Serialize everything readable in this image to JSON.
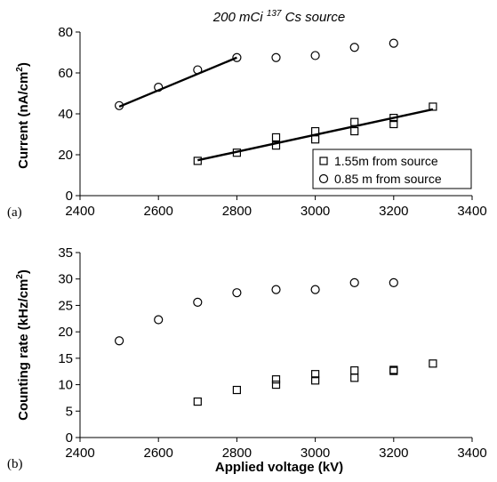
{
  "chart_data": [
    {
      "type": "scatter",
      "panel_label": "(a)",
      "title": {
        "pre": "200 mCi ",
        "sup": "137",
        "post": " Cs source"
      },
      "ylabel": {
        "pre": "Current (nA/cm",
        "sup": "2",
        "post": ")"
      },
      "xlim": [
        2400,
        3400
      ],
      "ylim": [
        0,
        80
      ],
      "xticks": [
        "2400",
        "2600",
        "2800",
        "3000",
        "3200",
        "3400"
      ],
      "yticks": [
        "0",
        "20",
        "40",
        "60",
        "80"
      ],
      "legend_position": "bottom-right",
      "series": [
        {
          "name": "1.55m from source",
          "marker": "square",
          "points": [
            [
              2700,
              17
            ],
            [
              2800,
              21
            ],
            [
              2900,
              24.5
            ],
            [
              2900,
              28.5
            ],
            [
              3000,
              27.5
            ],
            [
              3000,
              31.5
            ],
            [
              3100,
              31.5
            ],
            [
              3100,
              36
            ],
            [
              3200,
              35
            ],
            [
              3200,
              38
            ],
            [
              3300,
              43.5
            ]
          ],
          "fit": [
            [
              2700,
              17.3
            ],
            [
              3300,
              42.2
            ]
          ]
        },
        {
          "name": "0.85 m from source",
          "marker": "circle",
          "points": [
            [
              2500,
              44
            ],
            [
              2600,
              53
            ],
            [
              2700,
              61.5
            ],
            [
              2800,
              67.5
            ],
            [
              2900,
              67.5
            ],
            [
              3000,
              68.5
            ],
            [
              3100,
              72.5
            ],
            [
              3200,
              74.5
            ]
          ],
          "fit": [
            [
              2500,
              43.5
            ],
            [
              2800,
              67.5
            ]
          ]
        }
      ]
    },
    {
      "type": "scatter",
      "panel_label": "(b)",
      "ylabel": {
        "pre": "Counting rate (kHz/cm",
        "sup": "2",
        "post": ")"
      },
      "xlabel": "Applied voltage (kV)",
      "xlim": [
        2400,
        3400
      ],
      "ylim": [
        0,
        35
      ],
      "xticks": [
        "2400",
        "2600",
        "2800",
        "3000",
        "3200",
        "3400"
      ],
      "yticks": [
        "0",
        "5",
        "10",
        "15",
        "20",
        "25",
        "30",
        "35"
      ],
      "series": [
        {
          "marker": "square",
          "points": [
            [
              2700,
              6.8
            ],
            [
              2800,
              9
            ],
            [
              2900,
              10
            ],
            [
              2900,
              11
            ],
            [
              3000,
              10.8
            ],
            [
              3000,
              12
            ],
            [
              3100,
              11.3
            ],
            [
              3100,
              12.7
            ],
            [
              3200,
              12.6
            ],
            [
              3200,
              12.8
            ],
            [
              3300,
              14
            ]
          ]
        },
        {
          "marker": "circle",
          "points": [
            [
              2500,
              18.3
            ],
            [
              2600,
              22.3
            ],
            [
              2700,
              25.6
            ],
            [
              2800,
              27.4
            ],
            [
              2900,
              28
            ],
            [
              3000,
              28
            ],
            [
              3100,
              29.3
            ],
            [
              3200,
              29.3
            ]
          ]
        }
      ]
    }
  ]
}
